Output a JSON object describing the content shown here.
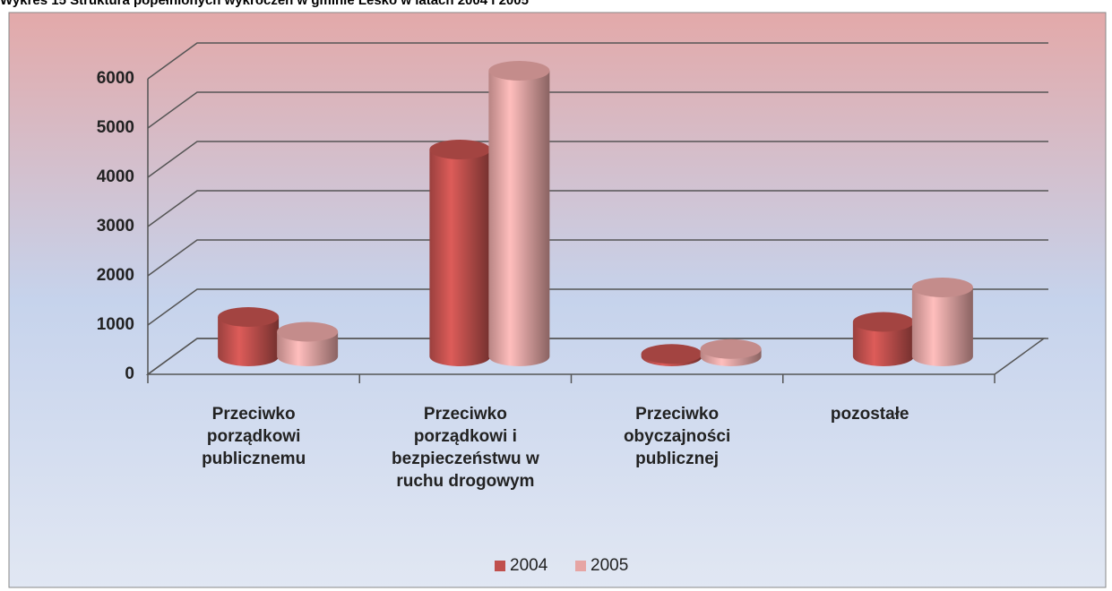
{
  "chart_data": {
    "type": "bar3d",
    "title": "Wykres 15 Struktura popełnionych wykroczeń w gminie Lesko w latach 2004 i 2005",
    "categories": [
      "Przeciwko porządkowi publicznemu",
      "Przeciwko porządkowi i bezpieczeństwu w ruchu drogowym",
      "Przeciwko obyczajności publicznej",
      "pozostałe"
    ],
    "series": [
      {
        "name": "2004",
        "color": "#c0504d",
        "values": [
          800,
          4200,
          50,
          700
        ]
      },
      {
        "name": "2005",
        "color": "#e6a5a4",
        "values": [
          500,
          5800,
          150,
          1400
        ]
      }
    ],
    "ylim": [
      0,
      6000
    ],
    "yticks": [
      0,
      1000,
      2000,
      3000,
      4000,
      5000,
      6000
    ],
    "grid": true,
    "legend": "bottom"
  }
}
